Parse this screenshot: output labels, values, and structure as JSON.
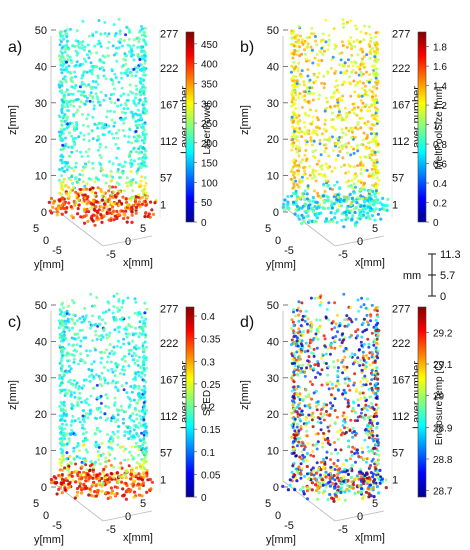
{
  "chart_data": [
    {
      "type": "scatter",
      "panel_label": "a)",
      "projection": "3d",
      "xlabel": "x[mm]",
      "ylabel": "y[mm]",
      "zlabel": "z[mm]",
      "x_ticks": [
        "-5",
        "0",
        "5"
      ],
      "y_ticks": [
        "-5",
        "0",
        "5"
      ],
      "z_ticks": [
        "0",
        "10",
        "20",
        "30",
        "40",
        "50"
      ],
      "zlim": [
        0,
        50
      ],
      "layer_axis_label": "Layer number",
      "layer_ticks": [
        "1",
        "57",
        "112",
        "167",
        "222",
        "277"
      ],
      "colorbar": {
        "label": "LaserPower",
        "ticks": [
          "0",
          "50",
          "100",
          "150",
          "200",
          "250",
          "300",
          "350",
          "400",
          "450"
        ],
        "range": [
          0,
          480
        ],
        "colormap": "jet"
      },
      "distribution": [
        {
          "z_range": [
            0,
            4
          ],
          "value_range": [
            330,
            470
          ]
        },
        {
          "z_range": [
            4,
            9
          ],
          "value_range": [
            230,
            330
          ]
        },
        {
          "z_range": [
            9,
            50
          ],
          "value_range": [
            150,
            240
          ],
          "outlier_value": 60,
          "outlier_fraction": 0.03
        }
      ]
    },
    {
      "type": "scatter",
      "panel_label": "b)",
      "projection": "3d",
      "xlabel": "x[mm]",
      "ylabel": "y[mm]",
      "zlabel": "z[mm]",
      "x_ticks": [
        "-5",
        "0",
        "5"
      ],
      "y_ticks": [
        "-5",
        "0",
        "5"
      ],
      "z_ticks": [
        "0",
        "10",
        "20",
        "30",
        "40",
        "50"
      ],
      "zlim": [
        0,
        50
      ],
      "layer_axis_label": "Layer number",
      "layer_ticks": [
        "1",
        "57",
        "112",
        "167",
        "222",
        "277"
      ],
      "colorbar": {
        "label": "MeltPoolSize [mm]",
        "ticks": [
          "0",
          "0.2",
          "0.4",
          "0.6",
          "0.8",
          "1",
          "1.2",
          "1.4",
          "1.6",
          "1.8"
        ],
        "range": [
          0,
          1.95
        ],
        "colormap": "jet"
      },
      "distribution": [
        {
          "z_range": [
            0,
            5
          ],
          "value_range": [
            0.5,
            1.0
          ]
        },
        {
          "z_range": [
            5,
            50
          ],
          "value_range": [
            1.05,
            1.45
          ],
          "outlier_value": 0.5,
          "outlier_fraction": 0.06
        }
      ]
    },
    {
      "type": "scatter",
      "panel_label": "c)",
      "projection": "3d",
      "xlabel": "x[mm]",
      "ylabel": "y[mm]",
      "zlabel": "z[mm]",
      "x_ticks": [
        "-5",
        "0",
        "5"
      ],
      "y_ticks": [
        "-5",
        "0",
        "5"
      ],
      "z_ticks": [
        "0",
        "10",
        "20",
        "30",
        "40",
        "50"
      ],
      "zlim": [
        0,
        50
      ],
      "layer_axis_label": "Layer number",
      "layer_ticks": [
        "1",
        "57",
        "112",
        "167",
        "222",
        "277"
      ],
      "colorbar": {
        "label": "SLED",
        "ticks": [
          "0",
          "0.05",
          "0.1",
          "0.15",
          "0.2",
          "0.25",
          "0.3",
          "0.35",
          "0.4"
        ],
        "range": [
          0,
          0.42
        ],
        "colormap": "jet"
      },
      "distribution": [
        {
          "z_range": [
            0,
            4
          ],
          "value_range": [
            0.28,
            0.41
          ]
        },
        {
          "z_range": [
            4,
            9
          ],
          "value_range": [
            0.2,
            0.28
          ]
        },
        {
          "z_range": [
            9,
            50
          ],
          "value_range": [
            0.13,
            0.21
          ],
          "outlier_value": 0.06,
          "outlier_fraction": 0.03
        }
      ]
    },
    {
      "type": "scatter",
      "panel_label": "d)",
      "projection": "3d",
      "xlabel": "x[mm]",
      "ylabel": "y[mm]",
      "zlabel": "z[mm]",
      "x_ticks": [
        "-5",
        "0",
        "5"
      ],
      "y_ticks": [
        "-5",
        "0",
        "5"
      ],
      "z_ticks": [
        "0",
        "10",
        "20",
        "30",
        "40",
        "50"
      ],
      "zlim": [
        0,
        50
      ],
      "layer_axis_label": "Layer number",
      "layer_ticks": [
        "1",
        "57",
        "112",
        "167",
        "222",
        "277"
      ],
      "colorbar": {
        "label": "EnclosureTemp [C]",
        "ticks": [
          "28.7",
          "28.8",
          "28.9",
          "29",
          "29.1",
          "29.2"
        ],
        "range": [
          28.68,
          29.28
        ],
        "colormap": "jet"
      },
      "distribution": [
        {
          "z_range": [
            0,
            50
          ],
          "value_range": [
            28.68,
            29.28
          ]
        }
      ]
    }
  ],
  "scale_bar": {
    "unit": "mm",
    "ticks": [
      "11.3",
      "5.7",
      "0"
    ]
  }
}
